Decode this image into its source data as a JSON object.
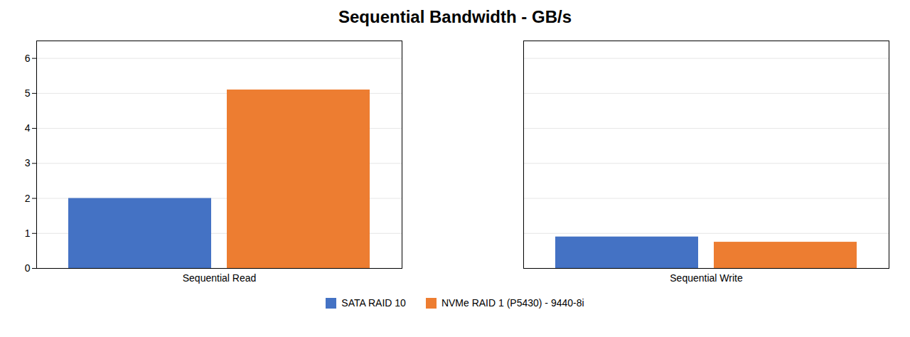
{
  "chart_data": {
    "type": "bar",
    "title": "Sequential Bandwidth - GB/s",
    "categories": [
      "Sequential Read",
      "Sequential Write"
    ],
    "series": [
      {
        "name": "SATA RAID 10",
        "color": "#4472C4",
        "values": [
          2.0,
          0.9
        ]
      },
      {
        "name": "NVMe RAID 1 (P5430) - 9440-8i",
        "color": "#ED7D31",
        "values": [
          5.1,
          0.75
        ]
      }
    ],
    "ylim": [
      0,
      6.5
    ],
    "yticks": [
      0,
      1,
      2,
      3,
      4,
      5,
      6
    ],
    "grid": true,
    "legend": "bottom"
  }
}
